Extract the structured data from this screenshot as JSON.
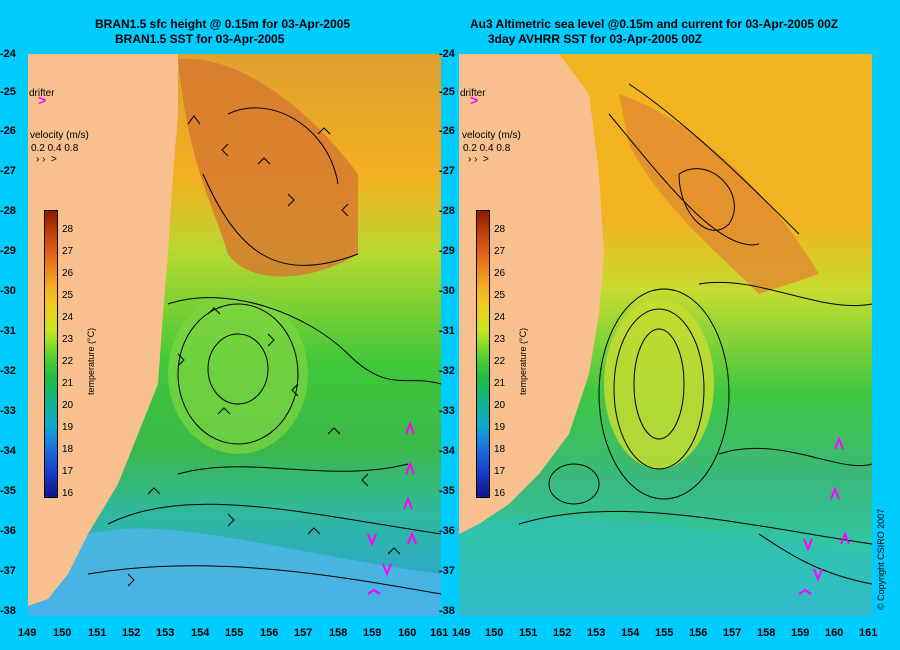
{
  "left": {
    "title_line1": "BRAN1.5 sfc height @ 0.15m for 03-Apr-2005",
    "title_line2": "BRAN1.5 SST for 03-Apr-2005"
  },
  "right": {
    "title_line1": "Au3 Altimetric sea level  @0.15m and current for 03-Apr-2005 00Z",
    "title_line2": "3day AVHRR SST for 03-Apr-2005 00Z"
  },
  "legend": {
    "drifter_label": "drifter",
    "velocity_label": "velocity (m/s)",
    "velocity_values": "0.2 0.4 0.8",
    "colorbar_title": "temperature (°C)",
    "colorbar_ticks": [
      "28",
      "27",
      "26",
      "25",
      "24",
      "23",
      "22",
      "21",
      "20",
      "19",
      "18",
      "17",
      "16"
    ]
  },
  "axes": {
    "lat_labels": [
      "-24",
      "-25",
      "-26",
      "-27",
      "-28",
      "-29",
      "-30",
      "-31",
      "-32",
      "-33",
      "-34",
      "-35",
      "-36",
      "-37",
      "-38"
    ],
    "left_lon_labels": [
      "149",
      "150",
      "151",
      "152",
      "153",
      "154",
      "155",
      "156",
      "157",
      "158",
      "159",
      "160",
      "161"
    ],
    "right_lon_labels": [
      "149",
      "150",
      "151",
      "152",
      "153",
      "154",
      "155",
      "156",
      "157",
      "158",
      "159",
      "160",
      "161"
    ]
  },
  "copyright": "© Copyright CSIRO 2007",
  "colors": {
    "background": "#00ccff",
    "land": "#f7c08e",
    "drifter": "#ff00ff"
  }
}
